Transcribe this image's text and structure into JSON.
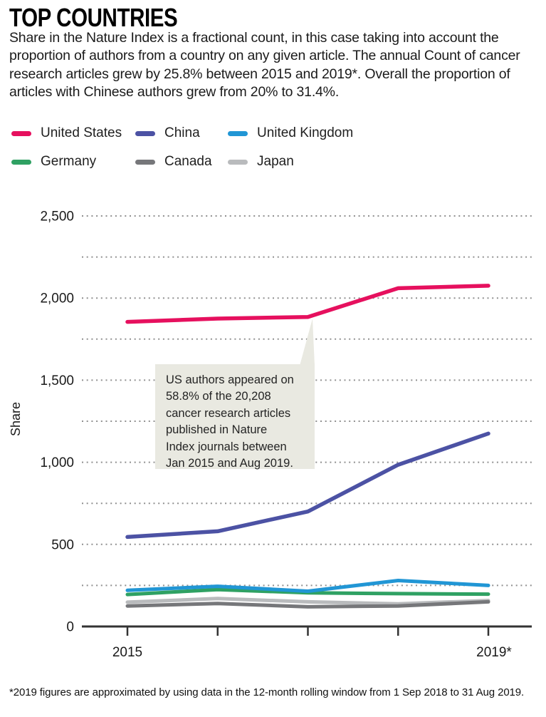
{
  "header": {
    "title": "TOP COUNTRIES",
    "description": "Share in the Nature Index is a fractional count, in this case taking into account the proportion of authors from a country on any given article. The annual Count of cancer research articles grew by 25.8% between 2015 and 2019*. Overall the proportion of articles with Chinese authors grew from 20% to 31.4%."
  },
  "annotation": {
    "lines": [
      "US authors appeared on",
      "58.8% of the 20,208",
      "cancer research articles",
      "published in Nature",
      "Index journals between",
      "Jan 2015 and Aug 2019."
    ]
  },
  "footnote": "*2019 figures are approximated by using data in the 12-month rolling window from 1 Sep 2018 to 31 Aug 2019.",
  "colors": {
    "annotation_bg": "#e9e9e1",
    "grid": "#909090",
    "axis": "#333333",
    "text": "#1a1a1a"
  },
  "chart_data": {
    "type": "line",
    "title": "TOP COUNTRIES",
    "ylabel": "Share",
    "xlabel": "",
    "x": [
      2015,
      2016,
      2017,
      2018,
      2019
    ],
    "x_tick_labels": [
      {
        "year": 2015,
        "label": "2015"
      },
      {
        "year": 2019,
        "label": "2019*"
      }
    ],
    "ylim": [
      0,
      2500
    ],
    "grid_step": 250,
    "grid_style": "dotted",
    "y_tick_labels": [
      {
        "value": 2500,
        "label": "2,500"
      },
      {
        "value": 2000,
        "label": "2,000"
      },
      {
        "value": 1500,
        "label": "1,500"
      },
      {
        "value": 1000,
        "label": "1,000"
      },
      {
        "value": 500,
        "label": "500"
      },
      {
        "value": 0,
        "label": "0"
      }
    ],
    "legend_position": "top-left two rows",
    "series": [
      {
        "name": "United States",
        "color": "#e6105e",
        "values": [
          1855,
          1875,
          1885,
          2060,
          2075
        ]
      },
      {
        "name": "China",
        "color": "#4c52a4",
        "values": [
          545,
          580,
          700,
          985,
          1175
        ]
      },
      {
        "name": "United Kingdom",
        "color": "#2196d5",
        "values": [
          220,
          245,
          215,
          280,
          250
        ]
      },
      {
        "name": "Germany",
        "color": "#2fa163",
        "values": [
          195,
          225,
          205,
          200,
          197
        ]
      },
      {
        "name": "Canada",
        "color": "#76777a",
        "values": [
          125,
          140,
          120,
          125,
          150
        ]
      },
      {
        "name": "Japan",
        "color": "#b9bbbd",
        "values": [
          148,
          170,
          150,
          138,
          158
        ]
      }
    ]
  }
}
